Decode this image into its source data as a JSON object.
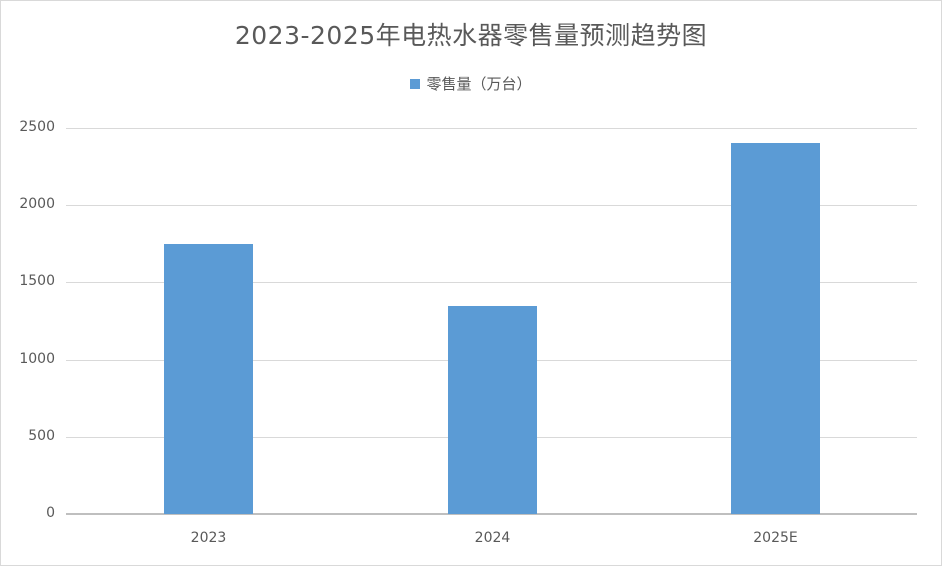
{
  "chart_data": {
    "type": "bar",
    "title": "2023-2025年电热水器零售量预测趋势图",
    "categories": [
      "2023",
      "2024",
      "2025E"
    ],
    "series": [
      {
        "name": "零售量（万台）",
        "values": [
          1750,
          1350,
          2400
        ],
        "color": "#5b9bd5"
      }
    ],
    "xlabel": "",
    "ylabel": "",
    "ylim": [
      0,
      2500
    ],
    "yticks": [
      0,
      500,
      1000,
      1500,
      2000,
      2500
    ],
    "grid": true,
    "legend_position": "top"
  },
  "labels": {
    "title": "2023-2025年电热水器零售量预测趋势图",
    "legend": "零售量（万台）",
    "yticks": [
      "2500",
      "2000",
      "1500",
      "1000",
      "500",
      "0"
    ],
    "xticks": [
      "2023",
      "2024",
      "2025E"
    ]
  }
}
